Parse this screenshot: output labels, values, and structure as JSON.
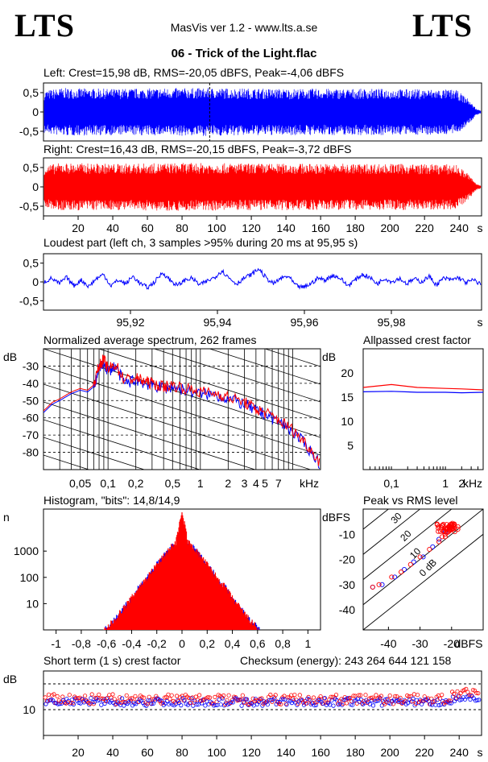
{
  "header": {
    "logo_left": "LTS",
    "logo_right": "LTS",
    "app_title": "MasVis ver 1.2 - www.lts.a.se",
    "file_title": "06 - Trick of the Light.flac"
  },
  "colors": {
    "left": "#0000ff",
    "right": "#ff0000",
    "axis": "#000000"
  },
  "chart_data": [
    {
      "id": "left_waveform",
      "type": "area",
      "title": "Left: Crest=15,98 dB, RMS=-20,05 dBFS, Peak=-4,06 dBFS",
      "y_ticks": [
        "0,5",
        "0",
        "-0,5"
      ],
      "ylim": [
        -0.75,
        0.75
      ],
      "x_range_s": [
        0,
        250
      ],
      "loudest_marker_s": 95.95,
      "envelope": [
        [
          0,
          0.55
        ],
        [
          10,
          0.62
        ],
        [
          40,
          0.6
        ],
        [
          80,
          0.62
        ],
        [
          95.95,
          0.62
        ],
        [
          140,
          0.6
        ],
        [
          200,
          0.6
        ],
        [
          238,
          0.58
        ],
        [
          245,
          0.35
        ],
        [
          250,
          0.08
        ],
        [
          254,
          0.01
        ]
      ]
    },
    {
      "id": "right_waveform",
      "type": "area",
      "title": "Right: Crest=16,43 dB, RMS=-20,15 dBFS, Peak=-3,72 dBFS",
      "y_ticks": [
        "0,5",
        "0",
        "-0,5"
      ],
      "ylim": [
        -0.75,
        0.75
      ],
      "x_range_s": [
        0,
        250
      ],
      "x_ticks": [
        "20",
        "40",
        "60",
        "80",
        "100",
        "120",
        "140",
        "160",
        "180",
        "200",
        "220",
        "240"
      ],
      "x_unit": "s",
      "envelope": [
        [
          0,
          0.55
        ],
        [
          10,
          0.62
        ],
        [
          40,
          0.6
        ],
        [
          80,
          0.62
        ],
        [
          140,
          0.6
        ],
        [
          200,
          0.6
        ],
        [
          238,
          0.58
        ],
        [
          245,
          0.35
        ],
        [
          250,
          0.08
        ],
        [
          254,
          0.01
        ]
      ]
    },
    {
      "id": "loudest_part",
      "type": "line",
      "title": "Loudest part (left  ch, 3 samples >95% during 20 ms at 95,95 s)",
      "y_ticks": [
        "0,5",
        "0",
        "-0,5"
      ],
      "ylim": [
        -0.75,
        0.75
      ],
      "x_range_s": [
        95.9,
        96.0
      ],
      "x_ticks": [
        "95,92",
        "95,94",
        "95,96",
        "95,98"
      ],
      "x_unit": "s",
      "series": [
        {
          "values": [
            0,
            0.1,
            -0.05,
            0.12,
            -0.1,
            0.05,
            -0.12,
            0.08,
            0.2,
            -0.1,
            0.05,
            -0.05,
            0.15,
            -0.05,
            -0.15,
            0.02,
            0.25,
            0.05,
            -0.1,
            0.05,
            0.1,
            -0.08,
            0.02,
            0.12,
            0.3,
            0.1,
            -0.05,
            0.1,
            0.2,
            0.35,
            0.1,
            -0.05,
            0.1,
            0.15,
            -0.1,
            -0.15,
            -0.05,
            0.1,
            0.05,
            0.18,
            0.1,
            -0.1,
            0.05,
            0.2,
            0.12,
            -0.05,
            0.1,
            0.0,
            0.1,
            -0.05,
            0.08,
            0.0,
            0.15,
            -0.08,
            0.1,
            0.05,
            0.12,
            -0.02,
            0.05,
            -0.05
          ]
        }
      ]
    },
    {
      "id": "spectrum",
      "type": "line",
      "title": "Normalized average spectrum, 262 frames",
      "ylabel": "dB",
      "xlabel": "kHz",
      "ylim": [
        -90,
        -20
      ],
      "y_ticks": [
        "-30",
        "-40",
        "-50",
        "-60",
        "-70",
        "-80"
      ],
      "x_ticks": [
        "0,05",
        "0,1",
        "0,2",
        "0,5",
        "1",
        "2",
        "3",
        "4",
        "5",
        "7"
      ],
      "x_tick_values": [
        0.05,
        0.1,
        0.2,
        0.5,
        1,
        2,
        3,
        4,
        5,
        7
      ],
      "xlim": [
        0.02,
        20
      ],
      "series": [
        {
          "points": [
            [
              0.02,
              -57
            ],
            [
              0.025,
              -52
            ],
            [
              0.03,
              -50
            ],
            [
              0.04,
              -46
            ],
            [
              0.05,
              -44
            ],
            [
              0.06,
              -45
            ],
            [
              0.07,
              -42
            ],
            [
              0.08,
              -32
            ],
            [
              0.09,
              -28
            ],
            [
              0.1,
              -33
            ],
            [
              0.12,
              -30
            ],
            [
              0.15,
              -40
            ],
            [
              0.2,
              -38
            ],
            [
              0.25,
              -40
            ],
            [
              0.3,
              -41
            ],
            [
              0.4,
              -43
            ],
            [
              0.5,
              -42
            ],
            [
              0.7,
              -44
            ],
            [
              1,
              -46
            ],
            [
              1.5,
              -47
            ],
            [
              2,
              -49
            ],
            [
              3,
              -52
            ],
            [
              4,
              -56
            ],
            [
              5,
              -58
            ],
            [
              7,
              -62
            ],
            [
              10,
              -68
            ],
            [
              14,
              -76
            ],
            [
              20,
              -87
            ]
          ]
        },
        {
          "points": [
            [
              0.02,
              -56
            ],
            [
              0.025,
              -51
            ],
            [
              0.03,
              -49
            ],
            [
              0.04,
              -45
            ],
            [
              0.05,
              -43
            ],
            [
              0.06,
              -44
            ],
            [
              0.07,
              -41
            ],
            [
              0.08,
              -30
            ],
            [
              0.09,
              -26
            ],
            [
              0.1,
              -32
            ],
            [
              0.12,
              -29
            ],
            [
              0.15,
              -38
            ],
            [
              0.2,
              -37
            ],
            [
              0.25,
              -39
            ],
            [
              0.3,
              -40
            ],
            [
              0.4,
              -42
            ],
            [
              0.5,
              -41
            ],
            [
              0.7,
              -43
            ],
            [
              1,
              -45
            ],
            [
              1.5,
              -46
            ],
            [
              2,
              -48
            ],
            [
              3,
              -51
            ],
            [
              4,
              -55
            ],
            [
              5,
              -57
            ],
            [
              7,
              -61
            ],
            [
              10,
              -67
            ],
            [
              14,
              -75
            ],
            [
              20,
              -86
            ]
          ]
        }
      ]
    },
    {
      "id": "allpassed_crest",
      "type": "line",
      "title": "Allpassed crest factor",
      "ylabel": "dB",
      "xlabel": "kHz",
      "ylim": [
        0,
        25
      ],
      "y_ticks": [
        "20",
        "15",
        "10",
        "5"
      ],
      "x_ticks": [
        "0,1",
        "1",
        "2"
      ],
      "x_tick_values": [
        0.1,
        1,
        2
      ],
      "xlim": [
        0.03,
        5
      ],
      "series": [
        {
          "points": [
            [
              0.03,
              17
            ],
            [
              0.1,
              17.6
            ],
            [
              0.3,
              17
            ],
            [
              1,
              16.8
            ],
            [
              2,
              16.7
            ],
            [
              5,
              16.5
            ]
          ]
        },
        {
          "points": [
            [
              0.03,
              16.1
            ],
            [
              0.1,
              16.2
            ],
            [
              0.3,
              16
            ],
            [
              1,
              16
            ],
            [
              2,
              15.9
            ],
            [
              5,
              16
            ]
          ]
        }
      ]
    },
    {
      "id": "histogram",
      "type": "line",
      "title": "Histogram, \"bits\": 14,8/14,9",
      "ylabel": "n",
      "y_ticks": [
        "1000",
        "100",
        "10"
      ],
      "y_tick_values": [
        1000,
        100,
        10
      ],
      "ylim": [
        1,
        30000
      ],
      "xlim": [
        -1.1,
        1.1
      ],
      "x_ticks": [
        "-1",
        "-0,8",
        "-0,6",
        "-0,4",
        "-0,2",
        "0",
        "0,2",
        "0,4",
        "0,6",
        "0,8",
        "1"
      ],
      "x_tick_values": [
        -1,
        -0.8,
        -0.6,
        -0.4,
        -0.2,
        0,
        0.2,
        0.4,
        0.6,
        0.8,
        1
      ],
      "series": [
        {
          "points": [
            [
              -0.62,
              1
            ],
            [
              -0.55,
              2
            ],
            [
              -0.5,
              4
            ],
            [
              -0.45,
              8
            ],
            [
              -0.4,
              15
            ],
            [
              -0.35,
              40
            ],
            [
              -0.3,
              70
            ],
            [
              -0.25,
              150
            ],
            [
              -0.2,
              300
            ],
            [
              -0.15,
              600
            ],
            [
              -0.1,
              1200
            ],
            [
              -0.05,
              2000
            ],
            [
              0,
              3000
            ],
            [
              0.05,
              2000
            ],
            [
              0.1,
              1200
            ],
            [
              0.15,
              600
            ],
            [
              0.2,
              300
            ],
            [
              0.25,
              150
            ],
            [
              0.3,
              70
            ],
            [
              0.35,
              40
            ],
            [
              0.4,
              15
            ],
            [
              0.45,
              8
            ],
            [
              0.5,
              4
            ],
            [
              0.55,
              2
            ],
            [
              0.62,
              1
            ]
          ]
        },
        {
          "points": [
            [
              -0.62,
              1
            ],
            [
              -0.55,
              2
            ],
            [
              -0.5,
              4
            ],
            [
              -0.45,
              8
            ],
            [
              -0.4,
              16
            ],
            [
              -0.35,
              38
            ],
            [
              -0.3,
              72
            ],
            [
              -0.25,
              145
            ],
            [
              -0.2,
              310
            ],
            [
              -0.15,
              590
            ],
            [
              -0.1,
              1250
            ],
            [
              -0.05,
              2100
            ],
            [
              0,
              30000
            ],
            [
              0.05,
              2100
            ],
            [
              0.1,
              1250
            ],
            [
              0.15,
              590
            ],
            [
              0.2,
              310
            ],
            [
              0.25,
              145
            ],
            [
              0.3,
              72
            ],
            [
              0.35,
              38
            ],
            [
              0.4,
              16
            ],
            [
              0.45,
              8
            ],
            [
              0.5,
              4
            ],
            [
              0.55,
              2
            ],
            [
              0.62,
              1
            ]
          ]
        }
      ]
    },
    {
      "id": "peak_vs_rms",
      "type": "scatter",
      "title": "Peak vs RMS level",
      "ylabel": "dBFS",
      "xlabel": "dBFS",
      "y_ticks": [
        "-10",
        "-20",
        "-30",
        "-40"
      ],
      "y_tick_values": [
        -10,
        -20,
        -30,
        -40
      ],
      "x_ticks": [
        "-40",
        "-30",
        "-20"
      ],
      "x_tick_values": [
        -40,
        -30,
        -20
      ],
      "xlim": [
        -48,
        -10
      ],
      "ylim": [
        -48,
        0
      ],
      "diagonal_labels": [
        "40",
        "30",
        "20",
        "10",
        "0 dB"
      ],
      "series": [
        {
          "points": [
            [
              -45,
              -31
            ],
            [
              -42,
              -30
            ],
            [
              -38,
              -27
            ],
            [
              -35,
              -24
            ],
            [
              -32,
              -21
            ],
            [
              -29,
              -19
            ],
            [
              -26,
              -15
            ],
            [
              -24,
              -12
            ],
            [
              -22,
              -9
            ]
          ]
        },
        {
          "points": [
            [
              -45,
              -31
            ],
            [
              -43,
              -30
            ],
            [
              -39,
              -27
            ],
            [
              -36,
              -25
            ],
            [
              -33,
              -22
            ],
            [
              -30,
              -19
            ],
            [
              -27,
              -16
            ],
            [
              -24,
              -13
            ],
            [
              -22,
              -11
            ],
            [
              -21,
              -9
            ],
            [
              -20,
              -8
            ],
            [
              -22,
              -8
            ],
            [
              -21,
              -7
            ],
            [
              -19,
              -7
            ],
            [
              -20,
              -6
            ],
            [
              -18,
              -7
            ],
            [
              -22,
              -10
            ],
            [
              -23,
              -11
            ],
            [
              -19,
              -9
            ],
            [
              -18,
              -8
            ]
          ]
        }
      ]
    },
    {
      "id": "short_term_crest",
      "type": "scatter",
      "title": "Short term (1 s) crest factor",
      "checksum": "Checksum (energy):   243 264 644 121 158",
      "ylabel": "dB",
      "y_ticks": [
        "10"
      ],
      "ylim": [
        0,
        25
      ],
      "x_range_s": [
        0,
        250
      ],
      "x_ticks": [
        "20",
        "40",
        "60",
        "80",
        "100",
        "120",
        "140",
        "160",
        "180",
        "200",
        "220",
        "240"
      ],
      "x_unit": "s"
    }
  ]
}
